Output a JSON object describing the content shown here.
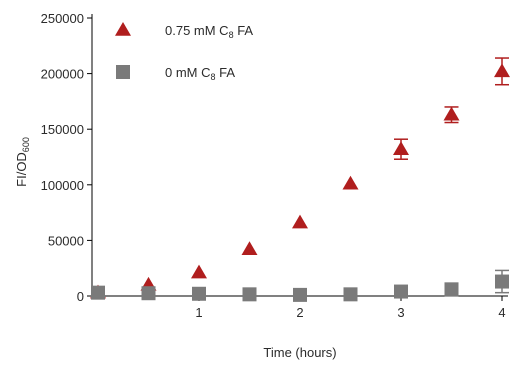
{
  "chart_data": {
    "type": "scatter",
    "title": "",
    "xlabel": "Time (hours)",
    "ylabel": {
      "main": "FI/OD",
      "sub": "600"
    },
    "xlim": [
      0,
      4
    ],
    "ylim": [
      0,
      250000
    ],
    "x_ticks": [
      1,
      2,
      3,
      4
    ],
    "y_ticks": [
      0,
      50000,
      100000,
      150000,
      200000,
      250000
    ],
    "grid": false,
    "legend_position": "top-left",
    "series": [
      {
        "name": {
          "prefix": "0.75 mM C",
          "sub": "8",
          "suffix": " FA"
        },
        "marker": "triangle",
        "color": "#b01e1e",
        "x": [
          0,
          0.5,
          1,
          1.5,
          2,
          2.5,
          3,
          3.5,
          4
        ],
        "y": [
          3000,
          10000,
          21000,
          42000,
          66000,
          101000,
          132000,
          163000,
          202000
        ],
        "error": [
          0,
          0,
          0,
          0,
          0,
          0,
          9000,
          7000,
          12000
        ]
      },
      {
        "name": {
          "prefix": "0 mM C",
          "sub": "8",
          "suffix": " FA"
        },
        "marker": "square",
        "color": "#7a7a7a",
        "x": [
          0,
          0.5,
          1,
          1.5,
          2,
          2.5,
          3,
          3.5,
          4
        ],
        "y": [
          3000,
          2500,
          2000,
          1500,
          1000,
          1500,
          4000,
          6000,
          13000
        ],
        "error": [
          0,
          0,
          0,
          0,
          0,
          0,
          0,
          0,
          10000
        ]
      }
    ]
  }
}
